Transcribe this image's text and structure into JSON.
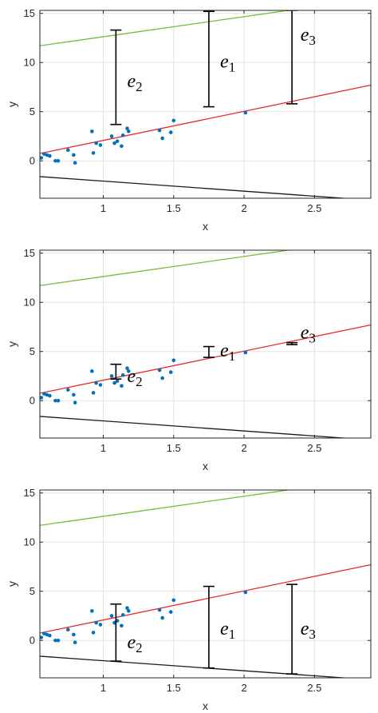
{
  "chart_data": [
    {
      "type": "scatter",
      "xlabel": "x",
      "ylabel": "y",
      "xlim": [
        0.55,
        2.9
      ],
      "ylim": [
        -3.8,
        15.3
      ],
      "xticks": [
        1,
        1.5,
        2,
        2.5
      ],
      "xtick_labels": [
        "1",
        "1.5",
        "2",
        "2.5"
      ],
      "yticks": [
        0,
        5,
        10,
        15
      ],
      "ytick_labels": [
        "0",
        "5",
        "10",
        "15"
      ],
      "grid": true,
      "points": {
        "x": [
          0.56,
          0.58,
          0.6,
          0.62,
          0.66,
          0.68,
          0.75,
          0.79,
          0.8,
          0.92,
          0.93,
          0.95,
          0.98,
          1.06,
          1.08,
          1.1,
          1.13,
          1.14,
          1.17,
          1.18,
          1.4,
          1.42,
          1.48,
          1.5,
          2.01
        ],
        "y": [
          0.3,
          0.7,
          0.6,
          0.5,
          0.0,
          0.0,
          1.1,
          0.6,
          -0.2,
          3.0,
          0.8,
          1.8,
          1.6,
          2.5,
          1.8,
          2.0,
          1.5,
          2.6,
          3.3,
          3.0,
          3.1,
          2.3,
          2.9,
          4.1,
          4.9
        ],
        "color": "#0072bd"
      },
      "lines": [
        {
          "x": [
            0.55,
            2.9
          ],
          "y": [
            0.75,
            7.7
          ],
          "color": "#e8282b"
        },
        {
          "x": [
            0.55,
            2.9
          ],
          "y": [
            11.7,
            16.5
          ],
          "color": "#76bb3a"
        },
        {
          "x": [
            0.55,
            2.9
          ],
          "y": [
            -1.6,
            -4.0
          ],
          "color": "#1a1a1a"
        }
      ],
      "error_bars": [
        {
          "label": "e",
          "sub": "2",
          "x": 1.09,
          "y1": 3.7,
          "y2": 13.3,
          "label_x": 1.17,
          "label_y": 7.5
        },
        {
          "label": "e",
          "sub": "1",
          "x": 1.75,
          "y1": 5.5,
          "y2": 15.2,
          "label_x": 1.83,
          "label_y": 9.5
        },
        {
          "label": "e",
          "sub": "3",
          "x": 2.34,
          "y1": 5.8,
          "y2": 15.3,
          "label_x": 2.4,
          "label_y": 12.2
        }
      ]
    },
    {
      "type": "scatter",
      "xlabel": "x",
      "ylabel": "y",
      "xlim": [
        0.55,
        2.9
      ],
      "ylim": [
        -3.8,
        15.3
      ],
      "xticks": [
        1,
        1.5,
        2,
        2.5
      ],
      "xtick_labels": [
        "1",
        "1.5",
        "2",
        "2.5"
      ],
      "yticks": [
        0,
        5,
        10,
        15
      ],
      "ytick_labels": [
        "0",
        "5",
        "10",
        "15"
      ],
      "grid": true,
      "points": {
        "x": [
          0.56,
          0.58,
          0.6,
          0.62,
          0.66,
          0.68,
          0.75,
          0.79,
          0.8,
          0.92,
          0.93,
          0.95,
          0.98,
          1.06,
          1.08,
          1.1,
          1.13,
          1.14,
          1.17,
          1.18,
          1.4,
          1.42,
          1.48,
          1.5,
          2.01
        ],
        "y": [
          0.3,
          0.7,
          0.6,
          0.5,
          0.0,
          0.0,
          1.1,
          0.6,
          -0.2,
          3.0,
          0.8,
          1.8,
          1.6,
          2.5,
          1.8,
          2.0,
          1.5,
          2.6,
          3.3,
          3.0,
          3.1,
          2.3,
          2.9,
          4.1,
          4.9
        ],
        "color": "#0072bd"
      },
      "lines": [
        {
          "x": [
            0.55,
            2.9
          ],
          "y": [
            0.75,
            7.7
          ],
          "color": "#e8282b"
        },
        {
          "x": [
            0.55,
            2.9
          ],
          "y": [
            11.7,
            16.5
          ],
          "color": "#76bb3a"
        },
        {
          "x": [
            0.55,
            2.9
          ],
          "y": [
            -1.6,
            -4.0
          ],
          "color": "#1a1a1a"
        }
      ],
      "error_bars": [
        {
          "label": "e",
          "sub": "2",
          "x": 1.09,
          "y1": 2.2,
          "y2": 3.7,
          "label_x": 1.17,
          "label_y": 1.9
        },
        {
          "label": "e",
          "sub": "1",
          "x": 1.75,
          "y1": 4.4,
          "y2": 5.5,
          "label_x": 1.83,
          "label_y": 4.5
        },
        {
          "label": "e",
          "sub": "3",
          "x": 2.34,
          "y1": 5.7,
          "y2": 5.9,
          "label_x": 2.4,
          "label_y": 6.3
        }
      ]
    },
    {
      "type": "scatter",
      "xlabel": "x",
      "ylabel": "y",
      "xlim": [
        0.55,
        2.9
      ],
      "ylim": [
        -3.8,
        15.3
      ],
      "xticks": [
        1,
        1.5,
        2,
        2.5
      ],
      "xtick_labels": [
        "1",
        "1.5",
        "2",
        "2.5"
      ],
      "yticks": [
        0,
        5,
        10,
        15
      ],
      "ytick_labels": [
        "0",
        "5",
        "10",
        "15"
      ],
      "grid": true,
      "points": {
        "x": [
          0.56,
          0.58,
          0.6,
          0.62,
          0.66,
          0.68,
          0.75,
          0.79,
          0.8,
          0.92,
          0.93,
          0.95,
          0.98,
          1.06,
          1.08,
          1.1,
          1.13,
          1.14,
          1.17,
          1.18,
          1.4,
          1.42,
          1.48,
          1.5,
          2.01
        ],
        "y": [
          0.3,
          0.7,
          0.6,
          0.5,
          0.0,
          0.0,
          1.1,
          0.6,
          -0.2,
          3.0,
          0.8,
          1.8,
          1.6,
          2.5,
          1.8,
          2.0,
          1.5,
          2.6,
          3.3,
          3.0,
          3.1,
          2.3,
          2.9,
          4.1,
          4.9
        ],
        "color": "#0072bd"
      },
      "lines": [
        {
          "x": [
            0.55,
            2.9
          ],
          "y": [
            0.75,
            7.7
          ],
          "color": "#e8282b"
        },
        {
          "x": [
            0.55,
            2.9
          ],
          "y": [
            11.7,
            16.5
          ],
          "color": "#76bb3a"
        },
        {
          "x": [
            0.55,
            2.9
          ],
          "y": [
            -1.6,
            -4.0
          ],
          "color": "#1a1a1a"
        }
      ],
      "error_bars": [
        {
          "label": "e",
          "sub": "2",
          "x": 1.09,
          "y1": -2.1,
          "y2": 3.7,
          "label_x": 1.17,
          "label_y": -0.8
        },
        {
          "label": "e",
          "sub": "1",
          "x": 1.75,
          "y1": -2.8,
          "y2": 5.5,
          "label_x": 1.83,
          "label_y": 0.6
        },
        {
          "label": "e",
          "sub": "3",
          "x": 2.34,
          "y1": -3.4,
          "y2": 5.7,
          "label_x": 2.4,
          "label_y": 0.6
        }
      ]
    }
  ]
}
